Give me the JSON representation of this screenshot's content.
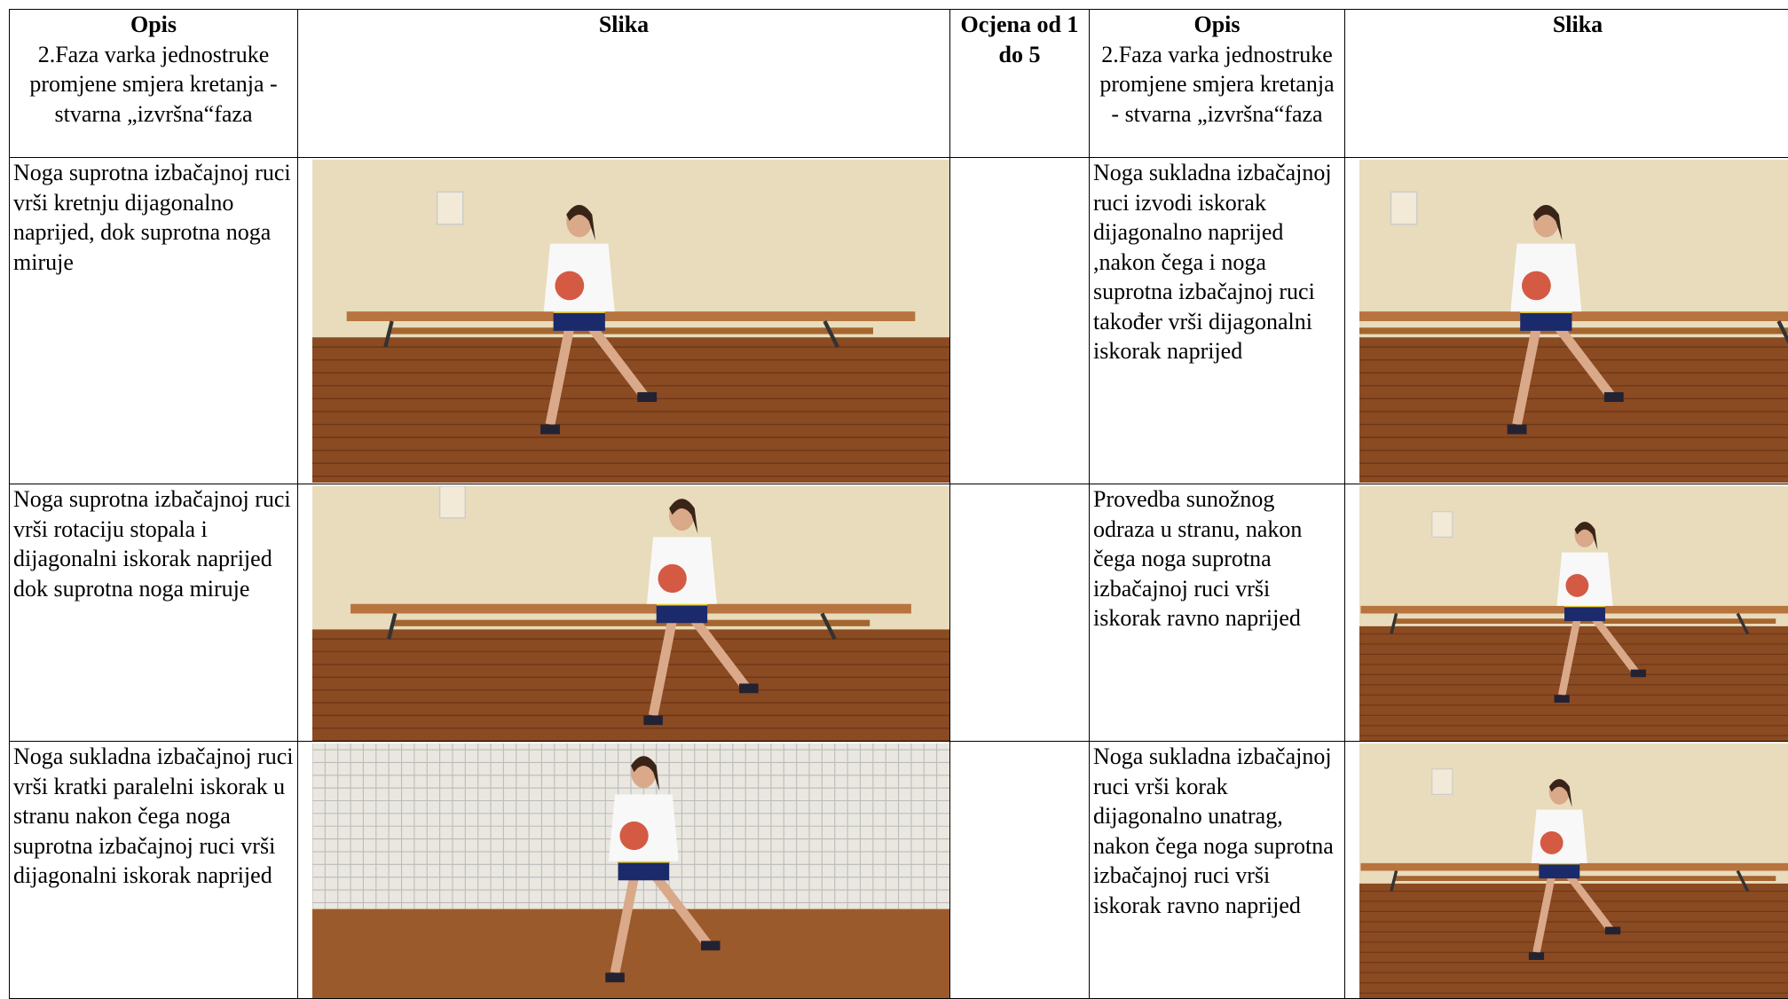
{
  "header": {
    "cells": [
      {
        "title": "Opis",
        "subtitle": "2.Faza varka jednostruke promjene smjera kretanja -stvarna „izvršna“faza"
      },
      {
        "title": "Slika"
      },
      {
        "title": "Ocjena od 1 do 5"
      },
      {
        "title": "Opis",
        "subtitle": "2.Faza varka jednostruke promjene smjera kretanja - stvarna „izvršna“faza"
      },
      {
        "title": "Slika"
      }
    ]
  },
  "rows": [
    {
      "left": "Noga suprotna izbačajnoj ruci vrši kretnju dijagonalno naprijed, dok suprotna noga miruje",
      "right": "Noga sukladna izbačajnoj ruci izvodi iskorak dijagonalno naprijed ,nakon čega i noga suprotna izbačajnoj ruci također vrši dijagonalni iskorak naprijed"
    },
    {
      "left": "Noga suprotna izbačajnoj ruci vrši rotaciju stopala i dijagonalni iskorak naprijed dok suprotna noga miruje",
      "right": "Provedba sunožnog odraza u stranu, nakon čega noga suprotna izbačajnoj ruci vrši iskorak ravno naprijed"
    },
    {
      "left": "Noga sukladna izbačajnoj ruci vrši kratki paralelni iskorak u stranu nakon čega noga suprotna izbačajnoj ruci vrši dijagonalni iskorak naprijed",
      "right": "Noga sukladna izbačajnoj ruci vrši korak dijagonalno unatrag, nakon čega noga suprotna izbačajnoj ruci vrši iskorak ravno naprijed"
    }
  ]
}
